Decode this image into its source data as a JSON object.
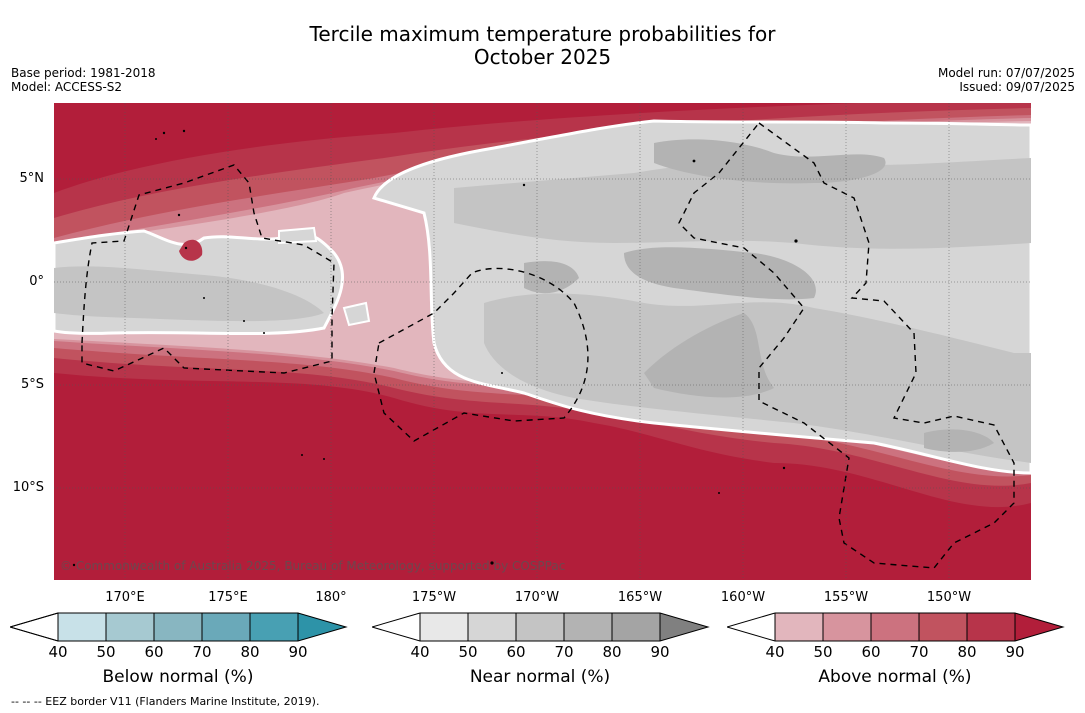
{
  "title_line1": "Tercile maximum temperature probabilities for",
  "title_line2": "October 2025",
  "meta_left": {
    "base_period": "Base period: 1981-2018",
    "model": "Model: ACCESS-S2"
  },
  "meta_right": {
    "model_run": "Model run: 07/07/2025",
    "issued": "Issued: 09/07/2025"
  },
  "map": {
    "lat_labels": [
      "5°N",
      "0°",
      "5°S",
      "10°S"
    ],
    "lon_labels": [
      "170°E",
      "175°E",
      "180°",
      "175°W",
      "170°W",
      "165°W",
      "160°W",
      "155°W",
      "150°W"
    ],
    "credit": "© Commonwealth of Australia 2025, Bureau of Meteorology, supported by COSPPac"
  },
  "colorbars": [
    {
      "title": "Below normal (%)",
      "ticks": [
        "40",
        "50",
        "60",
        "70",
        "80",
        "90"
      ],
      "colors": [
        "#c8e1e8",
        "#a6c9d1",
        "#88b6c1",
        "#6aa9b9",
        "#48a0b3",
        "#2d93a8"
      ]
    },
    {
      "title": "Near normal (%)",
      "ticks": [
        "40",
        "50",
        "60",
        "70",
        "80",
        "90"
      ],
      "colors": [
        "#e8e8e8",
        "#d6d6d6",
        "#c4c4c4",
        "#b3b3b3",
        "#a4a4a4",
        "#808080"
      ]
    },
    {
      "title": "Above normal (%)",
      "ticks": [
        "40",
        "50",
        "60",
        "70",
        "80",
        "90"
      ],
      "colors": [
        "#e2b6bd",
        "#d7949e",
        "#cc727f",
        "#c1535f",
        "#b7344a",
        "#b21e3a"
      ]
    }
  ],
  "footer": "--  --  -- EEZ border V11 (Flanders Marine Institute, 2019)."
}
